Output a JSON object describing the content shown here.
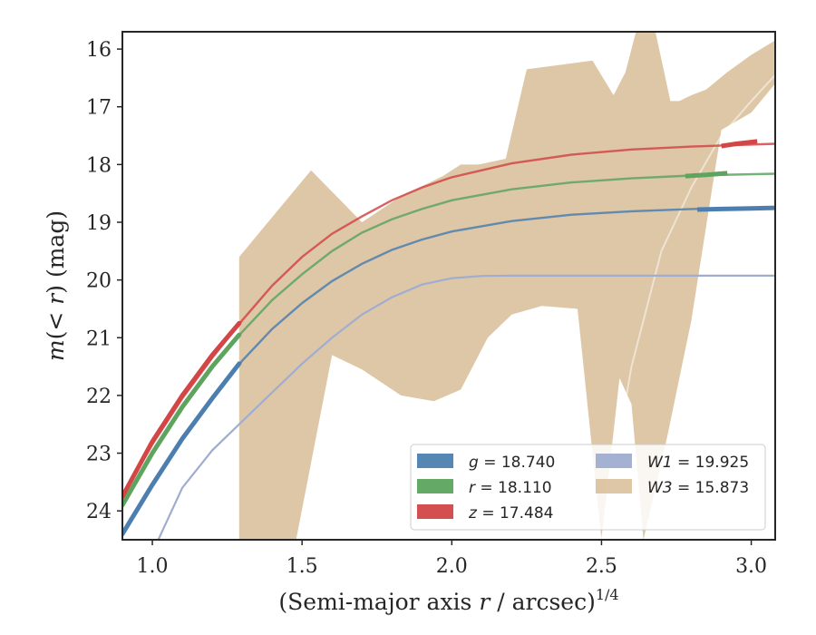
{
  "chart_data": {
    "type": "line",
    "xlabel": "(Semi-major axis r / arcsec)",
    "xlabel_italic_part": "r",
    "xlabel_superscript": "1/4",
    "ylabel": "m(< r) (mag)",
    "xlim": [
      0.9,
      3.08
    ],
    "ylim": [
      24.5,
      15.7
    ],
    "y_inverted": true,
    "grid": false,
    "legend_position": "lower-right",
    "x_ticks": [
      1.0,
      1.5,
      2.0,
      2.5,
      3.0
    ],
    "x_tick_labels": [
      "1.0",
      "1.5",
      "2.0",
      "2.5",
      "3.0"
    ],
    "y_ticks": [
      16,
      17,
      18,
      19,
      20,
      21,
      22,
      23,
      24
    ],
    "y_tick_labels": [
      "16",
      "17",
      "18",
      "19",
      "20",
      "21",
      "22",
      "23",
      "24"
    ],
    "series": [
      {
        "name": "g = 18.740",
        "label_var": "g",
        "label_val": "= 18.740",
        "color": "#4c7fb0",
        "model": {
          "x": [
            0.9,
            1.0,
            1.1,
            1.2,
            1.3,
            1.4,
            1.5,
            1.6,
            1.7,
            1.8,
            1.9,
            2.0,
            2.2,
            2.4,
            2.6,
            2.8,
            3.08
          ],
          "y": [
            24.4,
            23.55,
            22.75,
            22.05,
            21.4,
            20.85,
            20.4,
            20.02,
            19.72,
            19.48,
            19.3,
            19.16,
            18.98,
            18.87,
            18.81,
            18.77,
            18.74
          ]
        },
        "data": {
          "x": [
            0.9,
            1.0,
            1.1,
            1.2,
            1.29
          ],
          "y": [
            24.4,
            23.55,
            22.75,
            22.05,
            21.45
          ],
          "x2": [
            2.82,
            2.9,
            3.0,
            3.08
          ],
          "y2": [
            18.78,
            18.77,
            18.76,
            18.75
          ]
        }
      },
      {
        "name": "r = 18.110",
        "label_var": "r",
        "label_val": "= 18.110",
        "color": "#5da45f",
        "model": {
          "x": [
            0.9,
            1.0,
            1.1,
            1.2,
            1.3,
            1.4,
            1.5,
            1.6,
            1.7,
            1.8,
            1.9,
            2.0,
            2.2,
            2.4,
            2.6,
            2.8,
            3.08
          ],
          "y": [
            23.9,
            23.0,
            22.2,
            21.5,
            20.9,
            20.35,
            19.9,
            19.5,
            19.18,
            18.95,
            18.77,
            18.62,
            18.43,
            18.31,
            18.24,
            18.19,
            18.16
          ]
        },
        "data": {
          "x": [
            0.9,
            1.0,
            1.1,
            1.2,
            1.29
          ],
          "y": [
            23.9,
            23.0,
            22.2,
            21.5,
            20.95
          ],
          "x2": [
            2.78,
            2.85,
            2.92
          ],
          "y2": [
            18.2,
            18.18,
            18.15
          ]
        }
      },
      {
        "name": "z = 17.484",
        "label_var": "z",
        "label_val": "= 17.484",
        "color": "#d24646",
        "model": {
          "x": [
            0.9,
            1.0,
            1.1,
            1.2,
            1.3,
            1.4,
            1.5,
            1.6,
            1.7,
            1.8,
            1.9,
            2.0,
            2.2,
            2.4,
            2.6,
            2.8,
            3.08
          ],
          "y": [
            23.75,
            22.85,
            22.05,
            21.35,
            20.7,
            20.1,
            19.6,
            19.2,
            18.9,
            18.62,
            18.4,
            18.22,
            17.98,
            17.83,
            17.74,
            17.69,
            17.64
          ]
        },
        "data": {
          "x": [
            0.9,
            1.0,
            1.1,
            1.2,
            1.29
          ],
          "y": [
            23.75,
            22.8,
            22.0,
            21.3,
            20.75
          ],
          "x2": [
            2.9,
            2.95,
            3.02
          ],
          "y2": [
            17.68,
            17.64,
            17.6
          ]
        }
      },
      {
        "name": "W1 = 19.925",
        "label_var": "W1",
        "label_val": "= 19.925",
        "color": "#9fadd0",
        "model": {
          "x": [
            1.02,
            1.1,
            1.2,
            1.3,
            1.4,
            1.5,
            1.6,
            1.7,
            1.8,
            1.9,
            2.0,
            2.1,
            2.2,
            2.4,
            2.6,
            2.8,
            3.08
          ],
          "y": [
            24.5,
            23.6,
            22.95,
            22.45,
            21.95,
            21.45,
            21.0,
            20.6,
            20.3,
            20.08,
            19.97,
            19.93,
            19.925,
            19.925,
            19.925,
            19.925,
            19.925
          ]
        }
      },
      {
        "name": "W3 = 15.873",
        "label_var": "W3",
        "label_val": "= 15.873",
        "color": "#d8bd96",
        "band_upper": {
          "x": [
            1.29,
            1.53,
            1.7,
            1.83,
            1.97,
            2.03,
            2.09,
            2.18,
            2.25,
            2.47,
            2.54,
            2.58,
            2.62,
            2.68,
            2.73,
            2.76,
            2.8,
            2.85,
            2.92,
            3.0,
            3.08
          ],
          "y": [
            19.6,
            18.1,
            19.0,
            18.55,
            18.2,
            18.0,
            18.0,
            17.9,
            16.35,
            16.2,
            16.8,
            16.4,
            15.6,
            15.7,
            16.9,
            16.9,
            16.8,
            16.7,
            16.4,
            16.1,
            15.85
          ]
        },
        "band_lower": {
          "x": [
            1.29,
            1.48,
            1.6,
            1.7,
            1.83,
            1.94,
            2.03,
            2.12,
            2.2,
            2.3,
            2.42,
            2.5,
            2.56,
            2.6,
            2.64,
            2.72,
            2.8,
            2.9,
            3.0,
            3.08
          ],
          "y": [
            24.5,
            24.5,
            21.3,
            21.55,
            22.0,
            22.1,
            21.9,
            21.0,
            20.6,
            20.45,
            20.5,
            24.5,
            21.7,
            22.15,
            24.5,
            22.7,
            20.7,
            17.4,
            17.1,
            16.6
          ]
        },
        "model": {
          "x": [
            2.5,
            2.6,
            2.7,
            2.8,
            2.9,
            3.0,
            3.08
          ],
          "y": [
            24.5,
            21.5,
            19.5,
            18.4,
            17.5,
            16.9,
            16.45
          ]
        }
      }
    ]
  }
}
